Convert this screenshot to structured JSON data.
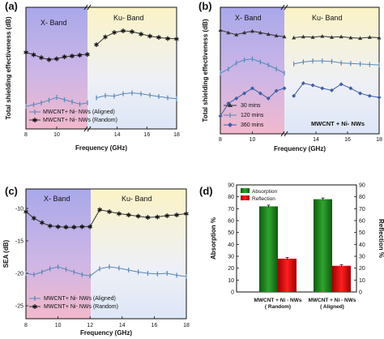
{
  "panels": [
    {
      "id": "a",
      "letter": "(a)",
      "ylabel": "Total shielding effectiveness (dB)",
      "xlabel": "Frequency (GHz)",
      "band_left": "X- Band",
      "band_right": "Ku- Band",
      "legend": [
        "MWCNT+ Ni- NWs (Aligned)",
        "MWCNT+ Ni- NWs (Random)"
      ]
    },
    {
      "id": "b",
      "letter": "(b)",
      "ylabel": "Total shielding effectiveness (dB)",
      "xlabel": "Frequency (GHz)",
      "band_left": "X- Band",
      "band_right": "Ku- Band",
      "legend": [
        "30 mins",
        "120 mins",
        "360 mins"
      ],
      "note": "MWCNT + Ni- NWs"
    },
    {
      "id": "c",
      "letter": "(c)",
      "ylabel": "SEA (dB)",
      "xlabel": "Frequency (GHz)",
      "band_left": "X- Band",
      "band_right": "Ku- Band",
      "legend": [
        "MWCNT+ Ni- NWs (Aligned)",
        "MWCNT+ Ni- NWs (Random)"
      ]
    },
    {
      "id": "d",
      "letter": "(d)",
      "ylabel_left": "Absorption %",
      "ylabel_right": "Reflection %",
      "legend": [
        "Absorption",
        "Reflection"
      ]
    }
  ],
  "chart_data": [
    {
      "type": "line",
      "panel": "a",
      "xlabel": "Frequency (GHz)",
      "ylabel": "Total shielding effectiveness (dB)",
      "x_ticks": [
        8,
        10,
        14,
        16,
        18
      ],
      "y_ticks": [],
      "xlim": [
        8,
        18
      ],
      "axis_break_x": 12,
      "series": [
        {
          "name": "MWCNT+ Ni- NWs (Aligned)",
          "color": "#5a87b8",
          "marker": "bar",
          "x": [
            8,
            8.5,
            9,
            9.5,
            10,
            10.5,
            11,
            11.5,
            12,
            12.6,
            13.2,
            13.8,
            14.4,
            15,
            15.6,
            16.2,
            16.8,
            17.4,
            18
          ],
          "y": [
            -28,
            -27.6,
            -27.2,
            -26.6,
            -26,
            -26.5,
            -27,
            -27.5,
            -27.2,
            -26.1,
            -25.6,
            -25.7,
            -25.2,
            -25.0,
            -25.2,
            -25.5,
            -25.8,
            -26.1,
            -26.3
          ]
        },
        {
          "name": "MWCNT+ Ni- NWs (Random)",
          "color": "#333333",
          "marker": "star",
          "x": [
            8,
            8.5,
            9,
            9.5,
            10,
            10.5,
            11,
            11.5,
            12,
            12.6,
            13.2,
            13.8,
            14.4,
            15,
            15.6,
            16.2,
            16.8,
            17.4,
            18
          ],
          "y": [
            -16,
            -16.5,
            -17.2,
            -17.6,
            -17.4,
            -17.0,
            -16.8,
            -16.6,
            -16.4,
            -14.3,
            -12.6,
            -11.6,
            -11.2,
            -11.4,
            -11.9,
            -12.4,
            -12.7,
            -12.9,
            -13.0
          ]
        }
      ]
    },
    {
      "type": "line",
      "panel": "b",
      "xlabel": "Frequency (GHz)",
      "ylabel": "Total shielding effectiveness (dB)",
      "x_ticks": [
        8,
        10,
        14,
        16,
        18
      ],
      "y_ticks": [],
      "xlim": [
        8,
        18
      ],
      "axis_break_x": 12,
      "series": [
        {
          "name": "30 mins",
          "color": "#333333",
          "marker": "triangle",
          "x": [
            8,
            8.5,
            9,
            9.5,
            10,
            10.5,
            11,
            11.5,
            12,
            12.6,
            13.2,
            13.8,
            14.4,
            15,
            15.6,
            16.2,
            16.8,
            17.4,
            18
          ],
          "y": [
            -12.5,
            -13,
            -13.4,
            -13.0,
            -12.7,
            -13.0,
            -13.3,
            -13.6,
            -13.8,
            -14.0,
            -13.8,
            -13.9,
            -13.7,
            -13.9,
            -13.8,
            -14.0,
            -14.1,
            -13.9,
            -14.0
          ]
        },
        {
          "name": "120 mins",
          "color": "#5a87b8",
          "marker": "bar",
          "x": [
            8,
            8.5,
            9,
            9.5,
            10,
            10.5,
            11,
            11.5,
            12,
            12.6,
            13.2,
            13.8,
            14.4,
            15,
            15.6,
            16.2,
            16.8,
            17.4,
            18
          ],
          "y": [
            -21,
            -20.2,
            -19.0,
            -18.4,
            -18.2,
            -18.8,
            -19.4,
            -20.2,
            -21.0,
            -19.2,
            -18.8,
            -18.6,
            -18.6,
            -18.7,
            -19.0,
            -19.1,
            -19.2,
            -19.3,
            -19.4
          ]
        },
        {
          "name": "360 mins",
          "color": "#3c5fa8",
          "marker": "diamond",
          "x": [
            8,
            8.5,
            9,
            9.5,
            10,
            10.5,
            11,
            11.5,
            12,
            12.6,
            13.2,
            13.8,
            14.4,
            15,
            15.6,
            16.2,
            16.8,
            17.4,
            18
          ],
          "y": [
            -29.5,
            -27.0,
            -26.0,
            -25.0,
            -24.0,
            -25.0,
            -26.0,
            -24.5,
            -24.0,
            -25.5,
            -23.0,
            -23.4,
            -24.0,
            -24.4,
            -23.2,
            -24.0,
            -25.0,
            -25.5,
            -25.8
          ]
        }
      ]
    },
    {
      "type": "line",
      "panel": "c",
      "xlabel": "Frequency (GHz)",
      "ylabel": "SEA (dB)",
      "x_ticks": [
        8,
        10,
        12,
        14,
        16,
        18
      ],
      "y_ticks": [
        -10,
        -15,
        -20,
        -25
      ],
      "ylim": [
        -27,
        -7
      ],
      "xlim": [
        8,
        18
      ],
      "series": [
        {
          "name": "MWCNT+ Ni- NWs (Aligned)",
          "color": "#5a87b8",
          "marker": "bar",
          "x": [
            8,
            8.5,
            9,
            9.5,
            10,
            10.5,
            11,
            11.5,
            12,
            12.6,
            13.2,
            13.8,
            14.4,
            15,
            15.6,
            16.2,
            16.8,
            17.4,
            18
          ],
          "y": [
            -20,
            -20.2,
            -19.8,
            -19.3,
            -19.0,
            -19.4,
            -19.8,
            -20.2,
            -20.4,
            -19.3,
            -19.0,
            -19.2,
            -19.5,
            -19.8,
            -20.0,
            -20.1,
            -20.0,
            -20.3,
            -20.5
          ]
        },
        {
          "name": "MWCNT+ Ni- NWs (Random)",
          "color": "#333333",
          "marker": "star",
          "x": [
            8,
            8.5,
            9,
            9.5,
            10,
            10.5,
            11,
            11.5,
            12,
            12.6,
            13.2,
            13.8,
            14.4,
            15,
            15.6,
            16.2,
            16.8,
            17.4,
            18
          ],
          "y": [
            -10.5,
            -11.5,
            -12.2,
            -12.7,
            -12.8,
            -12.9,
            -12.9,
            -12.8,
            -12.8,
            -10.2,
            -10.5,
            -10.8,
            -11.0,
            -11.2,
            -11.4,
            -11.3,
            -11.1,
            -11.0,
            -10.8
          ]
        }
      ]
    },
    {
      "type": "bar",
      "panel": "d",
      "categories": [
        "MWCNT + Ni - NWs\n( Random)",
        "MWCNT + Ni - NWs\n( Aligned)"
      ],
      "ylabel": "Absorption %",
      "ylabel_right": "Reflection %",
      "ylim": [
        0,
        90
      ],
      "y_ticks": [
        0,
        10,
        20,
        30,
        40,
        50,
        60,
        70,
        80,
        90
      ],
      "legend_position": "top-left",
      "series": [
        {
          "name": "Absorption",
          "color": "#1e7a1e",
          "values": [
            72,
            78
          ],
          "errors": [
            1.0,
            1.0
          ]
        },
        {
          "name": "Reflection",
          "color": "#e01010",
          "values": [
            28,
            22
          ],
          "errors": [
            1.0,
            1.0
          ]
        }
      ]
    }
  ]
}
